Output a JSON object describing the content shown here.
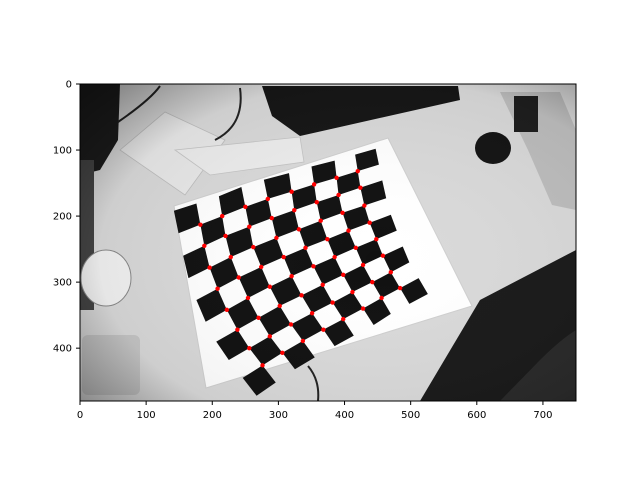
{
  "chart_data": {
    "type": "scatter",
    "title": "",
    "xlabel": "",
    "ylabel": "",
    "xlim": [
      0,
      750
    ],
    "ylim": [
      480,
      0
    ],
    "y_inverted": true,
    "grid": false,
    "xticks": [
      0,
      100,
      200,
      300,
      400,
      500,
      600,
      700
    ],
    "yticks": [
      0,
      100,
      200,
      300,
      400
    ],
    "background_image": "grayscale photo of a checkerboard calibration target on a desk (fisheye distortion)",
    "marker_color": "#ff0000",
    "series": [
      {
        "name": "",
        "points": [
          [
            182,
            213
          ],
          [
            215,
            200
          ],
          [
            250,
            186
          ],
          [
            284,
            174
          ],
          [
            320,
            163
          ],
          [
            354,
            152
          ],
          [
            388,
            142
          ],
          [
            420,
            132
          ],
          [
            188,
            245
          ],
          [
            220,
            230
          ],
          [
            256,
            216
          ],
          [
            290,
            203
          ],
          [
            324,
            191
          ],
          [
            358,
            179
          ],
          [
            391,
            168
          ],
          [
            424,
            157
          ],
          [
            196,
            278
          ],
          [
            228,
            262
          ],
          [
            262,
            247
          ],
          [
            297,
            233
          ],
          [
            331,
            220
          ],
          [
            364,
            207
          ],
          [
            397,
            195
          ],
          [
            430,
            184
          ],
          [
            208,
            310
          ],
          [
            240,
            293
          ],
          [
            274,
            277
          ],
          [
            308,
            262
          ],
          [
            341,
            248
          ],
          [
            374,
            235
          ],
          [
            406,
            222
          ],
          [
            438,
            210
          ],
          [
            222,
            342
          ],
          [
            254,
            324
          ],
          [
            287,
            307
          ],
          [
            320,
            291
          ],
          [
            353,
            276
          ],
          [
            385,
            262
          ],
          [
            417,
            248
          ],
          [
            448,
            235
          ],
          [
            238,
            372
          ],
          [
            270,
            354
          ],
          [
            302,
            336
          ],
          [
            335,
            320
          ],
          [
            367,
            304
          ],
          [
            398,
            289
          ],
          [
            428,
            274
          ],
          [
            458,
            260
          ],
          [
            256,
            400
          ],
          [
            287,
            382
          ],
          [
            319,
            364
          ],
          [
            351,
            347
          ],
          [
            382,
            331
          ],
          [
            412,
            315
          ],
          [
            442,
            300
          ],
          [
            470,
            285
          ],
          [
            276,
            426
          ],
          [
            306,
            407
          ],
          [
            337,
            389
          ],
          [
            368,
            372
          ],
          [
            398,
            356
          ],
          [
            428,
            340
          ],
          [
            456,
            324
          ],
          [
            484,
            309
          ]
        ]
      }
    ]
  }
}
